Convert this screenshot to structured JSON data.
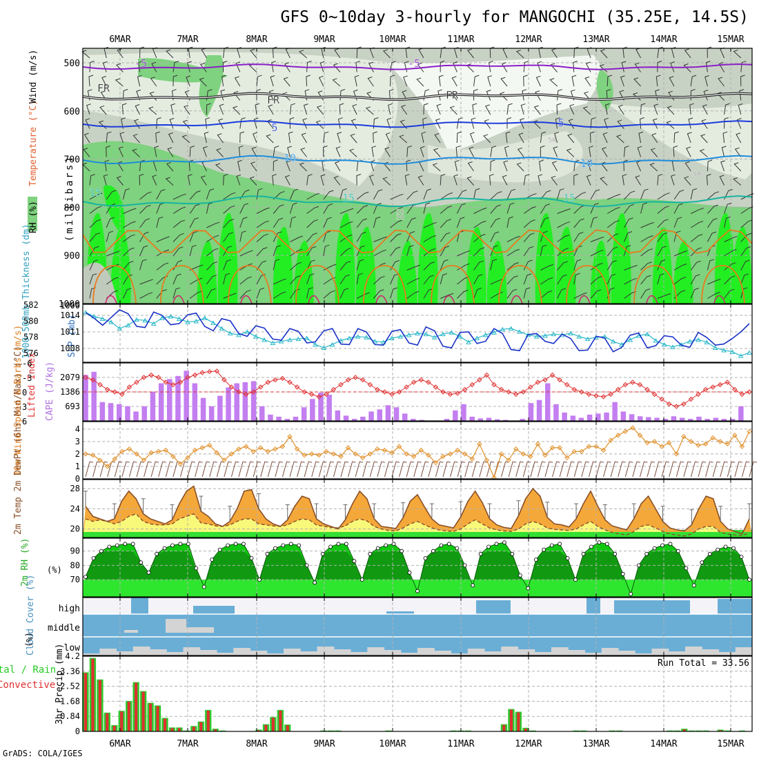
{
  "header": {
    "title": "GFS 0~10day 3-hourly for MANGOCHI (35.25E, 14.5S)",
    "credit": "GrADS: COLA/IGES",
    "run_total": "Run Total = 33.56"
  },
  "colors": {
    "frame": "#000000",
    "grid": "#b0b0b0",
    "rh_light": "#e4ece0",
    "rh_mid": "#c8d2c4",
    "rh_green": "#7fd27f",
    "rh_bright": "#22ee22",
    "minus5": "#8a1ec8",
    "freezing": "#202020",
    "plus5": "#1a3adc",
    "plus10": "#1e8cdc",
    "plus15": "#16b4a0",
    "plus20": "#e87a1e",
    "slp": "#1a32c8",
    "thickness": "#2ab8c8",
    "lifted": "#e03030",
    "cape": "#c37ef0",
    "wind10m": "#e0902a",
    "temp_fill": "#f5a83a",
    "dew_fill": "#f8f87a",
    "temp_line": "#8a5028",
    "rh2m_dark": "#119a11",
    "rh2m_mid": "#11c811",
    "rh2m_light": "#33ee33",
    "cloud_blue": "#6aaed6",
    "cloud_gray": "#d4d4d4",
    "cloud_white": "#f4f4f8",
    "precip_total": "#2ec82e",
    "precip_conv": "#e03030",
    "label_green": "#22cc22",
    "label_orange": "#e08020",
    "label_purple": "#b070e0",
    "label_cyan": "#30a0c0",
    "label_red": "#e03030",
    "label_blue": "#3070c0"
  },
  "chart_data": {
    "type": "meteogram",
    "x_ticks": [
      "6MAR",
      "7MAR",
      "8MAR",
      "9MAR",
      "10MAR",
      "11MAR",
      "12MAR",
      "13MAR",
      "14MAR",
      "15MAR"
    ],
    "upper": {
      "axis_label": "(millibars)",
      "legend": {
        "rh": "RH (%)",
        "temp": "Temperature (°C)",
        "wind": "Wind (m/s)"
      },
      "y_ticks": [
        500,
        600,
        700,
        800,
        900,
        1000
      ],
      "contour_labels": [
        {
          "text": "-5",
          "series": "minus5"
        },
        {
          "text": "-5",
          "series": "minus5"
        },
        {
          "text": "FR",
          "series": "freezing"
        },
        {
          "text": "FR",
          "series": "freezing"
        },
        {
          "text": "FR",
          "series": "freezing"
        },
        {
          "text": "5",
          "series": "plus5"
        },
        {
          "text": "5",
          "series": "plus5"
        },
        {
          "text": "10",
          "series": "plus10"
        },
        {
          "text": "10",
          "series": "plus10"
        },
        {
          "text": "15",
          "series": "plus15"
        },
        {
          "text": "15",
          "series": "plus15"
        },
        {
          "text": "15",
          "series": "plus15"
        },
        {
          "text": "50",
          "series": "rh"
        },
        {
          "text": "50",
          "series": "rh"
        },
        {
          "text": "50",
          "series": "rh"
        },
        {
          "text": "50",
          "series": "rh"
        }
      ]
    },
    "slp_thickness": {
      "label_thickness": "1000-500mb Thickness (dm)",
      "label_slp": "SLP (mb)",
      "thickness_ticks": [
        582,
        580,
        578,
        576
      ],
      "slp_ticks": [
        1014,
        1011,
        1008
      ],
      "slp": [
        1014.5,
        1013.5,
        1012.2,
        1013.6,
        1015.0,
        1014.3,
        1012.0,
        1011.8,
        1014.6,
        1014.0,
        1012.3,
        1012.5,
        1014.1,
        1014.4,
        1012.0,
        1011.2,
        1013.4,
        1013.0,
        1010.7,
        1010.2,
        1012.1,
        1011.7,
        1009.7,
        1009.5,
        1011.6,
        1011.1,
        1009.0,
        1009.2,
        1011.2,
        1011.6,
        1008.8,
        1008.7,
        1011.6,
        1011.0,
        1008.7,
        1008.6,
        1011.1,
        1011.4,
        1009.0,
        1008.6,
        1011.9,
        1011.2,
        1008.4,
        1008.1,
        1010.9,
        1011.0,
        1008.9,
        1009.3,
        1011.6,
        1010.7,
        1007.8,
        1007.6,
        1010.5,
        1010.7,
        1009.3,
        1008.9,
        1010.6,
        1009.8,
        1007.6,
        1007.7,
        1010.2,
        1009.9,
        1007.4,
        1008.2,
        1010.4,
        1010.8,
        1008.1,
        1008.5,
        1010.3,
        1010.1,
        1008.6,
        1008.2,
        1010.9,
        1010.0,
        1008.6,
        1008.8,
        1009.8,
        1011.0,
        1012.5
      ],
      "thickness": [
        581.0,
        580.5,
        580.2,
        579.8,
        579.0,
        579.4,
        580.1,
        580.0,
        579.6,
        580.3,
        580.5,
        580.2,
        579.8,
        579.9,
        580.3,
        579.7,
        579.0,
        578.4,
        578.2,
        578.6,
        578.0,
        577.6,
        577.2,
        577.4,
        577.6,
        577.7,
        577.8,
        577.0,
        576.6,
        577.0,
        577.5,
        577.8,
        578.0,
        577.9,
        577.4,
        577.3,
        577.8,
        578.0,
        578.2,
        578.4,
        578.3,
        577.9,
        578.3,
        578.5,
        578.0,
        577.3,
        577.8,
        578.2,
        578.5,
        578.9,
        579.0,
        578.6,
        578.2,
        578.0,
        578.1,
        578.3,
        578.2,
        578.4,
        578.0,
        577.7,
        577.9,
        578.0,
        577.4,
        577.0,
        577.6,
        578.1,
        578.3,
        577.5,
        577.0,
        576.7,
        577.0,
        577.4,
        577.6,
        577.3,
        576.6,
        576.3,
        576.1,
        575.6,
        576.0
      ]
    },
    "cape_li": {
      "label_li": "Lifted Index",
      "label_cape": "CAPE (J/kg)",
      "li_ticks": [
        -6,
        -3,
        0,
        3,
        6
      ],
      "cape_ticks": [
        2079,
        1386,
        693
      ],
      "cape": [
        2200,
        2350,
        900,
        850,
        800,
        700,
        450,
        700,
        1400,
        1800,
        2000,
        2150,
        2400,
        1800,
        1100,
        700,
        1200,
        1600,
        1800,
        1850,
        1900,
        700,
        300,
        200,
        100,
        200,
        650,
        1050,
        1350,
        1250,
        500,
        250,
        100,
        200,
        450,
        550,
        750,
        650,
        350,
        100,
        50,
        0,
        0,
        100,
        500,
        800,
        200,
        120,
        150,
        80,
        50,
        0,
        100,
        850,
        1000,
        1800,
        800,
        400,
        250,
        150,
        300,
        350,
        400,
        900,
        450,
        320,
        220,
        180,
        150,
        100,
        220,
        150,
        100,
        200,
        100,
        150,
        100,
        100,
        700,
        0
      ],
      "lifted_index": [
        -3.0,
        -2.5,
        -1.5,
        -0.5,
        0.0,
        0.5,
        -1.0,
        -2.0,
        -3.0,
        -3.5,
        -3.0,
        -2.0,
        -1.5,
        -2.0,
        -3.0,
        -3.5,
        -4.0,
        -4.2,
        -4.3,
        -2.5,
        -1.0,
        0.0,
        0.5,
        0.0,
        -1.0,
        -2.0,
        -2.5,
        -2.8,
        -2.0,
        -1.0,
        0.0,
        0.5,
        1.0,
        0.5,
        -0.5,
        -1.5,
        -2.5,
        -3.0,
        -2.5,
        -1.5,
        -0.5,
        0.0,
        0.5,
        0.0,
        -1.0,
        -2.0,
        -2.5,
        -2.0,
        -1.0,
        0.0,
        0.5,
        0.3,
        -0.5,
        -1.5,
        -2.5,
        -3.5,
        -1.5,
        -0.5,
        0.0,
        0.5,
        0.0,
        -1.0,
        -2.0,
        -2.5,
        -3.5,
        -2.5,
        -1.5,
        -0.5,
        0.0,
        0.5,
        0.8,
        1.0,
        0.5,
        -0.5,
        -1.5,
        -2.0,
        -1.5,
        -0.5,
        0.5,
        1.5,
        2.5,
        3.0,
        2.5,
        1.5,
        0.5,
        -0.5,
        -1.0,
        -1.5,
        -2.0,
        -0.5,
        0.5,
        0.0
      ]
    },
    "wind10m": {
      "label": "10m Wind Speed & Barbs (m/s)",
      "y_ticks": [
        1,
        2,
        3,
        4
      ],
      "speed": [
        2.0,
        1.9,
        1.5,
        1.0,
        1.6,
        2.2,
        2.4,
        2.0,
        1.5,
        2.1,
        2.2,
        2.3,
        1.8,
        1.2,
        1.7,
        2.3,
        2.5,
        2.7,
        2.1,
        1.5,
        2.0,
        2.4,
        2.6,
        2.2,
        2.5,
        2.2,
        2.4,
        2.6,
        3.4,
        2.4,
        1.9,
        2.0,
        1.9,
        2.2,
        2.0,
        1.8,
        2.5,
        2.0,
        1.7,
        2.0,
        2.4,
        2.3,
        2.1,
        2.6,
        2.0,
        1.8,
        2.3,
        1.9,
        1.3,
        1.8,
        2.0,
        2.3,
        2.0,
        1.6,
        2.8,
        1.5,
        0.1,
        2.0,
        1.5,
        2.4,
        2.0,
        1.8,
        2.8,
        1.9,
        2.5,
        2.5,
        1.7,
        2.2,
        2.2,
        2.6,
        2.6,
        2.3,
        3.1,
        3.5,
        3.8,
        4.1,
        3.5,
        2.9,
        3.0,
        2.6,
        2.9,
        2.0,
        3.4,
        3.0,
        2.7,
        2.8,
        3.3,
        3.0,
        2.8,
        3.5,
        2.6,
        3.8
      ]
    },
    "temp2m": {
      "label": "2m Temp 2m DewPt (6hr Min/Max) (°C)",
      "y_ticks": [
        20,
        24,
        28
      ],
      "temp": [
        24.5,
        22.5,
        22.0,
        21.5,
        22.0,
        25.5,
        27.5,
        26.0,
        23.0,
        22.0,
        21.5,
        21.0,
        21.8,
        25.0,
        27.5,
        28.5,
        23.5,
        22.5,
        21.0,
        20.5,
        21.5,
        24.0,
        27.5,
        27.8,
        24.0,
        22.0,
        21.0,
        20.5,
        21.8,
        24.5,
        26.5,
        26.0,
        22.0,
        21.0,
        20.5,
        20.0,
        21.8,
        25.0,
        27.5,
        26.0,
        22.0,
        20.5,
        20.3,
        20.1,
        22.2,
        25.5,
        26.8,
        24.3,
        22.0,
        20.8,
        20.5,
        20.2,
        22.4,
        25.5,
        27.5,
        25.2,
        22.0,
        20.8,
        20.3,
        20.1,
        22.6,
        26.0,
        28.0,
        26.5,
        22.3,
        21.0,
        20.8,
        20.4,
        22.0,
        25.0,
        27.5,
        24.5,
        21.8,
        20.6,
        20.2,
        19.8,
        22.0,
        25.0,
        26.5,
        24.0,
        21.5,
        20.2,
        19.8,
        19.6,
        20.8,
        24.0,
        26.5,
        26.0,
        21.5,
        20.0,
        19.5,
        19.0,
        22.0
      ],
      "dewpoint": [
        22.0,
        21.5,
        21.8,
        21.5,
        21.0,
        21.5,
        22.5,
        23.0,
        21.5,
        21.0,
        20.8,
        20.8,
        21.0,
        22.0,
        22.5,
        23.0,
        21.2,
        21.0,
        20.6,
        20.5,
        20.8,
        21.5,
        22.0,
        22.0,
        21.0,
        20.8,
        20.6,
        20.5,
        20.8,
        21.5,
        22.0,
        21.8,
        20.8,
        20.5,
        20.3,
        20.2,
        20.6,
        21.5,
        22.0,
        21.6,
        20.5,
        20.0,
        19.7,
        19.6,
        20.2,
        21.0,
        21.5,
        20.8,
        20.2,
        19.8,
        19.6,
        19.5,
        20.0,
        21.0,
        21.8,
        21.0,
        20.2,
        19.8,
        19.6,
        19.5,
        20.0,
        21.0,
        21.5,
        21.0,
        20.2,
        19.9,
        19.8,
        19.7,
        20.0,
        20.8,
        21.5,
        20.5,
        19.8,
        19.3,
        19.0,
        18.8,
        19.5,
        20.5,
        20.8,
        20.2,
        19.5,
        19.0,
        18.8,
        18.6,
        19.0,
        20.0,
        20.5,
        20.5,
        19.3,
        19.0,
        18.8,
        18.7,
        19.2
      ]
    },
    "rh2m": {
      "label": "2m RH (%)",
      "y_ticks": [
        70,
        80,
        90
      ],
      "values": [
        72,
        85,
        90,
        93,
        94,
        95,
        95,
        82,
        75,
        88,
        92,
        94,
        95,
        95,
        78,
        65,
        84,
        91,
        94,
        95,
        95,
        85,
        70,
        88,
        92,
        94,
        95,
        94,
        80,
        68,
        88,
        93,
        95,
        95,
        83,
        70,
        88,
        92,
        94,
        95,
        90,
        75,
        62,
        85,
        90,
        94,
        95,
        92,
        80,
        66,
        88,
        93,
        95,
        96,
        88,
        73,
        64,
        84,
        91,
        94,
        95,
        85,
        70,
        88,
        93,
        96,
        95,
        88,
        74,
        60,
        80,
        88,
        92,
        94,
        95,
        90,
        78,
        66,
        82,
        88,
        91,
        93,
        92,
        86,
        70
      ]
    },
    "cloud": {
      "label": "Cloud Cover (%)",
      "levels": [
        "high",
        "middle",
        "low"
      ]
    },
    "precip": {
      "label_ylabel": "3hr Precip (mm)",
      "label_left1": "Total / Rain",
      "label_left2": "Convective",
      "y_ticks": [
        0,
        0.84,
        1.68,
        2.52,
        3.36,
        4.2
      ],
      "total": [
        3.3,
        4.1,
        2.9,
        1.05,
        0.35,
        1.15,
        1.7,
        2.75,
        2.25,
        1.6,
        1.45,
        0.75,
        0.22,
        0.22,
        0.05,
        0.3,
        0.55,
        1.2,
        0.15,
        0.05,
        0,
        0,
        0,
        0,
        0.1,
        0.4,
        0.8,
        1.2,
        0.38,
        0,
        0,
        0,
        0,
        0.05,
        0.05,
        0.05,
        0,
        0,
        0,
        0,
        0,
        0,
        0.05,
        0,
        0,
        0,
        0,
        0,
        0,
        0,
        0,
        0.05,
        0.05,
        0.05,
        0,
        0,
        0,
        0,
        0.4,
        1.25,
        1.1,
        0.2,
        0.05,
        0,
        0,
        0,
        0,
        0,
        0.05,
        0.05,
        0,
        0,
        0,
        0.05,
        0.05,
        0,
        0,
        0,
        0,
        0,
        0,
        0.05,
        0.05,
        0.15,
        0.05,
        0.05,
        0.05,
        0,
        0.1,
        0.05,
        0,
        0.05,
        0
      ]
    }
  }
}
